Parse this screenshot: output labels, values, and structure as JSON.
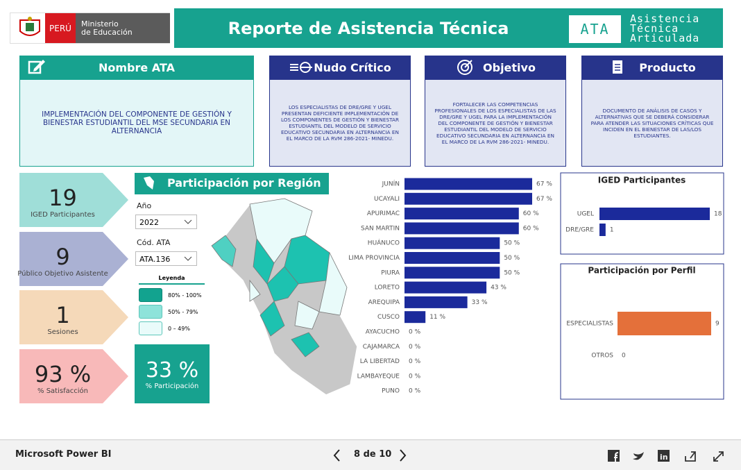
{
  "header": {
    "country": "PERÚ",
    "ministry": [
      "Ministerio",
      "de Educación"
    ],
    "title": "Reporte de Asistencia Técnica",
    "logo_abbr": "ATA",
    "logo_text": [
      "Asistencia",
      "Técnica",
      "Articulada"
    ]
  },
  "info_cards": [
    {
      "title": "Nombre ATA",
      "text": "IMPLEMENTACIÓN DEL COMPONENTE DE GESTIÓN Y BIENESTAR ESTUDIANTIL DEL MSE  SECUNDARIA EN ALTERNANCIA"
    },
    {
      "title": "Nudo Crítico",
      "text": "LOS ESPECIALISTAS DE DRE/GRE Y UGEL PRESENTAN DEFICIENTE IMPLEMENTACIÓN DE LOS COMPONENTES DE GESTIÓN Y BIENESTAR ESTUDIANTIL DEL MODELO DE SERVICIO EDUCATIVO SECUNDARIA EN ALTERNANCIA EN EL MARCO DE LA RVM 286-2021- MINEDU."
    },
    {
      "title": "Objetivo",
      "text": "FORTALECER LAS COMPETENCIAS PROFESIONALES DE LOS ESPECIALISTAS DE LAS DRE/GRE Y UGEL PARA LA IMPLEMENTACIÓN DEL COMPONENTE DE GESTIÓN Y BIENESTAR ESTUDIANTIL DEL MODELO DE SERVICIO EDUCATIVO SECUNDARIA EN ALTERNANCIA EN EL MARCO DE LA RVM 286-2021- MINEDU."
    },
    {
      "title": "Producto",
      "text": "DOCUMENTO DE ANÁLISIS DE CASOS Y ALTERNATIVAS QUE SE DEBERÁ CONSIDERAR PARA ATENDER LAS SITUACIONES CRÍTICAS QUE INCIDEN EN EL BIENESTAR DE LAS/LOS ESTUDIANTES."
    }
  ],
  "kpis": [
    {
      "value": "19",
      "label": "IGED Participantes"
    },
    {
      "value": "9",
      "label": "Público Objetivo Asistente"
    },
    {
      "value": "1",
      "label": "Sesiones"
    },
    {
      "value": "93 %",
      "label": "% Satisfacción"
    }
  ],
  "map": {
    "title": "Participación por Región",
    "filters": [
      {
        "label": "Año",
        "value": "2022"
      },
      {
        "label": "Cód. ATA",
        "value": "ATA.136"
      }
    ],
    "legend": {
      "title": "Leyenda",
      "items": [
        "80% - 100%",
        "50% - 79%",
        "0 – 49%"
      ]
    },
    "participation": {
      "value": "33 %",
      "label": "% Participación"
    }
  },
  "chart_data": [
    {
      "type": "bar",
      "orientation": "horizontal",
      "color": "#1b2a9b",
      "categories": [
        "JUNÍN",
        "UCAYALI",
        "APURIMAC",
        "SAN MARTIN",
        "HUÁNUCO",
        "LIMA PROVINCIA",
        "PIURA",
        "LORETO",
        "AREQUIPA",
        "CUSCO",
        "AYACUCHO",
        "CAJAMARCA",
        "LA LIBERTAD",
        "LAMBAYEQUE",
        "PUNO"
      ],
      "values": [
        67,
        67,
        60,
        60,
        50,
        50,
        50,
        43,
        33,
        11,
        0,
        0,
        0,
        0,
        0
      ],
      "value_labels": [
        "67 %",
        "67 %",
        "60 %",
        "60 %",
        "50 %",
        "50 %",
        "50 %",
        "43 %",
        "33 %",
        "11 %",
        "0 %",
        "0 %",
        "0 %",
        "0 %",
        "0 %"
      ]
    },
    {
      "type": "bar",
      "orientation": "horizontal",
      "title": "IGED Participantes",
      "color": "#1b2a9b",
      "categories": [
        "UGEL",
        "DRE/GRE"
      ],
      "values": [
        18,
        1
      ]
    },
    {
      "type": "bar",
      "orientation": "horizontal",
      "title": "Participación por Perfil",
      "color": "#e4703a",
      "categories": [
        "ESPECIALISTAS",
        "OTROS"
      ],
      "values": [
        9,
        0
      ]
    }
  ],
  "footer": {
    "brand": "Microsoft Power BI",
    "page": "8 de 10"
  }
}
